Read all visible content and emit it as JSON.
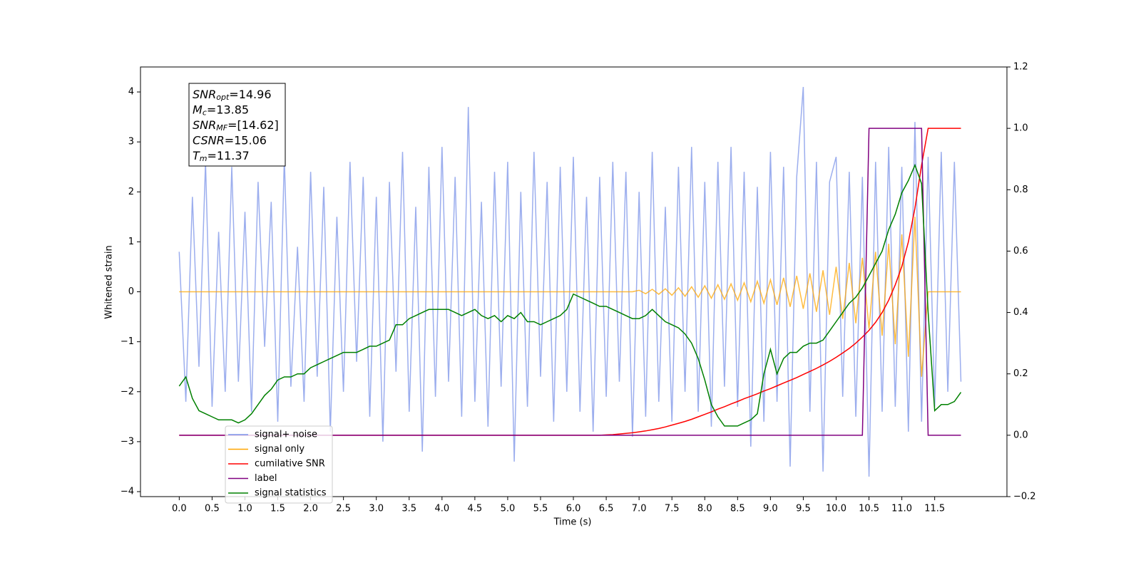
{
  "chart_data": {
    "type": "line",
    "xlabel": "Time (s)",
    "ylabel": "Whitened strain",
    "xlim": [
      -0.59,
      12.6
    ],
    "ylim": [
      -4.1,
      4.5
    ],
    "y2lim": [
      -0.2,
      1.2
    ],
    "xticks": [
      {
        "value": 0,
        "label": "0.0"
      },
      0.5,
      {
        "value": 1,
        "label": "1.0"
      },
      1.5,
      {
        "value": 2,
        "label": "2.0"
      },
      2.5,
      {
        "value": 3,
        "label": "3.0"
      },
      3.5,
      {
        "value": 4,
        "label": "4.0"
      },
      4.5,
      {
        "value": 5,
        "label": "5.0"
      },
      5.5,
      {
        "value": 6,
        "label": "6.0"
      },
      6.5,
      {
        "value": 7,
        "label": "7.0"
      },
      7.5,
      {
        "value": 8,
        "label": "8.0"
      },
      8.5,
      {
        "value": 9,
        "label": "9.0"
      },
      9.5,
      {
        "value": 10,
        "label": "10.0"
      },
      10.5,
      {
        "value": 11,
        "label": "11.0"
      },
      11.5
    ],
    "yticks": [
      {
        "value": -4,
        "label": "−4"
      },
      {
        "value": -3,
        "label": "−3"
      },
      {
        "value": -2,
        "label": "−2"
      },
      {
        "value": -1,
        "label": "−1"
      },
      0,
      1,
      2,
      3,
      4
    ],
    "y2ticks": [
      {
        "value": -0.2,
        "label": "−0.2"
      },
      {
        "value": 0,
        "label": "0.0"
      },
      0.2,
      0.4,
      0.6,
      0.8,
      {
        "value": 1,
        "label": "1.0"
      },
      1.2
    ],
    "legend": "lower left",
    "annotations": [
      {
        "symbol": "SNR",
        "subscript": "opt",
        "text": "=14.96"
      },
      {
        "symbol": "M",
        "subscript": "c",
        "text": "=13.85"
      },
      {
        "symbol": "SNR",
        "subscript": "MF",
        "text": "=[14.62]"
      },
      {
        "symbol": "CSNR",
        "subscript": "",
        "text": "=15.06"
      },
      {
        "symbol": "T",
        "subscript": "m",
        "text": "=11.37"
      }
    ],
    "x": [
      0,
      0.1,
      0.2,
      0.3,
      0.4,
      0.5,
      0.6,
      0.7,
      0.8,
      0.9,
      1,
      1.1,
      1.2,
      1.3,
      1.4,
      1.5,
      1.6,
      1.7,
      1.8,
      1.9,
      2,
      2.1,
      2.2,
      2.3,
      2.4,
      2.5,
      2.6,
      2.7,
      2.8,
      2.9,
      3,
      3.1,
      3.2,
      3.3,
      3.4,
      3.5,
      3.6,
      3.7,
      3.8,
      3.9,
      4,
      4.1,
      4.2,
      4.3,
      4.4,
      4.5,
      4.6,
      4.7,
      4.8,
      4.9,
      5,
      5.1,
      5.2,
      5.3,
      5.4,
      5.5,
      5.6,
      5.7,
      5.8,
      5.9,
      6,
      6.1,
      6.2,
      6.3,
      6.4,
      6.5,
      6.6,
      6.7,
      6.8,
      6.9,
      7,
      7.1,
      7.2,
      7.3,
      7.4,
      7.5,
      7.6,
      7.7,
      7.8,
      7.9,
      8,
      8.1,
      8.2,
      8.3,
      8.4,
      8.5,
      8.6,
      8.7,
      8.8,
      8.9,
      9,
      9.1,
      9.2,
      9.3,
      9.4,
      9.5,
      9.6,
      9.7,
      9.8,
      9.9,
      10,
      10.1,
      10.2,
      10.3,
      10.4,
      10.5,
      10.6,
      10.7,
      10.8,
      10.9,
      11,
      11.1,
      11.2,
      11.3,
      11.4,
      11.5,
      11.6,
      11.7,
      11.8,
      11.9
    ],
    "series": [
      {
        "name": "signal+ noise",
        "color": "#7b93e8",
        "axis": "y",
        "values": [
          0.8,
          -2.2,
          1.9,
          -1.5,
          2.6,
          -2.3,
          1.2,
          -2.0,
          2.5,
          -1.8,
          1.6,
          -2.4,
          2.2,
          -1.1,
          1.8,
          -2.6,
          2.7,
          -1.9,
          0.9,
          -2.2,
          2.4,
          -1.7,
          2.1,
          -2.8,
          1.5,
          -2.0,
          2.6,
          -1.4,
          2.3,
          -2.5,
          1.9,
          -3.0,
          2.2,
          -1.6,
          2.8,
          -2.4,
          1.7,
          -3.2,
          2.5,
          -2.1,
          2.9,
          -1.8,
          2.3,
          -2.5,
          3.7,
          -2.2,
          1.8,
          -2.7,
          2.4,
          -1.9,
          2.6,
          -3.4,
          2.0,
          -2.3,
          2.8,
          -1.7,
          2.2,
          -2.6,
          2.5,
          -2.0,
          2.7,
          -2.4,
          1.9,
          -2.8,
          2.3,
          -2.1,
          2.6,
          -1.8,
          2.4,
          -2.9,
          2.0,
          -2.5,
          2.8,
          -2.2,
          1.7,
          -2.6,
          2.5,
          -2.0,
          2.9,
          -2.4,
          2.2,
          -2.7,
          2.6,
          -1.9,
          2.9,
          -2.3,
          2.4,
          -3.1,
          2.1,
          -2.6,
          2.8,
          -2.2,
          2.5,
          -3.5,
          2.3,
          4.1,
          -2.4,
          2.6,
          -3.6,
          2.2,
          2.7,
          -2.1,
          2.4,
          -2.5,
          2.3,
          -3.7,
          2.6,
          -2.4,
          2.9,
          -2.3,
          2.5,
          -2.8,
          3.4,
          -2.6,
          2.7,
          -2.3,
          2.8,
          -2.0,
          2.6,
          -1.8
        ]
      },
      {
        "name": "signal only",
        "color": "#ffa500",
        "axis": "y",
        "values": [
          0,
          0,
          0,
          0,
          0,
          0,
          0,
          0,
          0,
          0,
          0,
          0,
          0,
          0,
          0,
          0,
          0,
          0,
          0,
          0,
          0,
          0,
          0,
          0,
          0,
          0,
          0,
          0,
          0,
          0,
          0,
          0,
          0,
          0,
          0,
          0,
          0,
          0,
          0,
          0,
          0,
          0,
          0,
          0,
          0,
          0,
          0,
          0,
          0,
          0,
          0,
          0,
          0,
          0,
          0,
          0,
          0,
          0,
          0,
          0,
          0,
          0,
          0,
          0,
          0,
          0,
          0,
          0,
          0,
          0,
          0.03,
          -0.04,
          0.05,
          -0.05,
          0.06,
          -0.07,
          0.08,
          -0.09,
          0.1,
          -0.11,
          0.12,
          -0.13,
          0.14,
          -0.15,
          0.16,
          -0.17,
          0.18,
          -0.2,
          0.21,
          -0.23,
          0.24,
          -0.26,
          0.28,
          -0.3,
          0.32,
          -0.34,
          0.37,
          -0.4,
          0.43,
          -0.46,
          0.5,
          -0.54,
          0.58,
          -0.63,
          0.68,
          -0.74,
          0.8,
          -0.88,
          0.96,
          -1.05,
          1.15,
          -1.3,
          1.5,
          -1.7,
          0,
          0,
          0,
          0,
          0,
          0
        ]
      },
      {
        "name": "cumilative SNR",
        "color": "#ff0000",
        "axis": "y2",
        "values": [
          0,
          0,
          0,
          0,
          0,
          0,
          0,
          0,
          0,
          0,
          0,
          0,
          0,
          0,
          0,
          0,
          0,
          0,
          0,
          0,
          0,
          0,
          0,
          0,
          0,
          0,
          0,
          0,
          0,
          0,
          0,
          0,
          0,
          0,
          0,
          0,
          0,
          0,
          0,
          0,
          0,
          0,
          0,
          0,
          0,
          0,
          0,
          0,
          0,
          0,
          0,
          0,
          0,
          0,
          0,
          0,
          0,
          0,
          0,
          0,
          0,
          0,
          0,
          0,
          0,
          0.001,
          0.002,
          0.004,
          0.006,
          0.008,
          0.011,
          0.014,
          0.018,
          0.022,
          0.027,
          0.033,
          0.039,
          0.045,
          0.052,
          0.06,
          0.068,
          0.076,
          0.085,
          0.093,
          0.102,
          0.11,
          0.119,
          0.127,
          0.135,
          0.144,
          0.152,
          0.161,
          0.17,
          0.179,
          0.188,
          0.198,
          0.208,
          0.218,
          0.229,
          0.241,
          0.254,
          0.268,
          0.283,
          0.3,
          0.32,
          0.342,
          0.368,
          0.4,
          0.44,
          0.49,
          0.55,
          0.63,
          0.74,
          0.88,
          1.0,
          1.0,
          1.0,
          1.0,
          1.0,
          1.0
        ]
      },
      {
        "name": "label",
        "color": "#800080",
        "axis": "y2",
        "values": [
          0,
          0,
          0,
          0,
          0,
          0,
          0,
          0,
          0,
          0,
          0,
          0,
          0,
          0,
          0,
          0,
          0,
          0,
          0,
          0,
          0,
          0,
          0,
          0,
          0,
          0,
          0,
          0,
          0,
          0,
          0,
          0,
          0,
          0,
          0,
          0,
          0,
          0,
          0,
          0,
          0,
          0,
          0,
          0,
          0,
          0,
          0,
          0,
          0,
          0,
          0,
          0,
          0,
          0,
          0,
          0,
          0,
          0,
          0,
          0,
          0,
          0,
          0,
          0,
          0,
          0,
          0,
          0,
          0,
          0,
          0,
          0,
          0,
          0,
          0,
          0,
          0,
          0,
          0,
          0,
          0,
          0,
          0,
          0,
          0,
          0,
          0,
          0,
          0,
          0,
          0,
          0,
          0,
          0,
          0,
          0,
          0,
          0,
          0,
          0,
          0,
          0,
          0,
          0,
          0,
          1,
          1,
          1,
          1,
          1,
          1,
          1,
          1,
          1,
          0,
          0,
          0,
          0,
          0,
          0
        ]
      },
      {
        "name": "signal statistics",
        "color": "#008000",
        "axis": "y2",
        "values": [
          0.16,
          0.19,
          0.12,
          0.08,
          0.07,
          0.06,
          0.05,
          0.05,
          0.05,
          0.04,
          0.05,
          0.07,
          0.1,
          0.13,
          0.15,
          0.18,
          0.19,
          0.19,
          0.2,
          0.2,
          0.22,
          0.23,
          0.24,
          0.25,
          0.26,
          0.27,
          0.27,
          0.27,
          0.28,
          0.29,
          0.29,
          0.3,
          0.31,
          0.36,
          0.36,
          0.38,
          0.39,
          0.4,
          0.41,
          0.41,
          0.41,
          0.41,
          0.4,
          0.39,
          0.4,
          0.41,
          0.39,
          0.38,
          0.39,
          0.37,
          0.39,
          0.38,
          0.4,
          0.37,
          0.37,
          0.36,
          0.37,
          0.38,
          0.39,
          0.41,
          0.46,
          0.45,
          0.44,
          0.43,
          0.42,
          0.42,
          0.41,
          0.4,
          0.39,
          0.38,
          0.38,
          0.39,
          0.41,
          0.39,
          0.37,
          0.36,
          0.35,
          0.33,
          0.3,
          0.25,
          0.18,
          0.1,
          0.06,
          0.03,
          0.03,
          0.03,
          0.04,
          0.05,
          0.07,
          0.2,
          0.28,
          0.2,
          0.25,
          0.27,
          0.27,
          0.29,
          0.3,
          0.3,
          0.31,
          0.34,
          0.37,
          0.4,
          0.43,
          0.45,
          0.48,
          0.52,
          0.56,
          0.6,
          0.67,
          0.72,
          0.79,
          0.83,
          0.88,
          0.82,
          0.4,
          0.08,
          0.1,
          0.1,
          0.11,
          0.14
        ]
      }
    ]
  }
}
